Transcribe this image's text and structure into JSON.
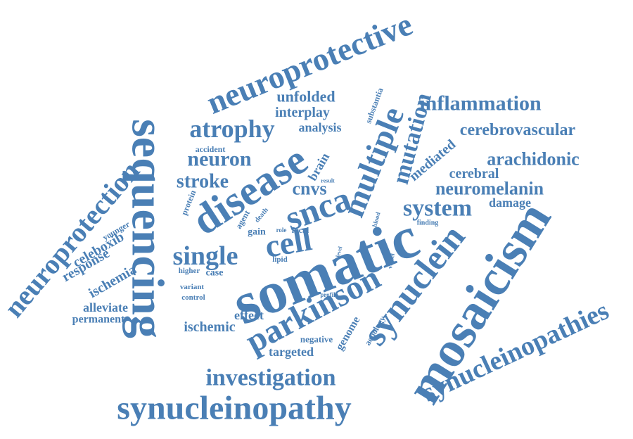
{
  "color": "#4a7fb5",
  "words": [
    {
      "key": "somatic",
      "text": "somatic"
    },
    {
      "key": "sequencing",
      "text": "sequencing"
    },
    {
      "key": "mosaicism",
      "text": "mosaicism"
    },
    {
      "key": "synucleinopathy",
      "text": "synucleinopathy"
    },
    {
      "key": "neuroprotective",
      "text": "neuroprotective"
    },
    {
      "key": "disease",
      "text": "disease"
    },
    {
      "key": "synuclein",
      "text": "synuclein"
    },
    {
      "key": "parkinson",
      "text": "parkinson"
    },
    {
      "key": "snca",
      "text": "snca"
    },
    {
      "key": "multiple",
      "text": "multiple"
    },
    {
      "key": "synucleinopathies",
      "text": "synucleinopathies"
    },
    {
      "key": "neuroprotection",
      "text": "neuroprotection"
    },
    {
      "key": "cell",
      "text": "cell"
    },
    {
      "key": "single",
      "text": "single"
    },
    {
      "key": "mutation",
      "text": "mutation"
    },
    {
      "key": "atrophy",
      "text": "atrophy"
    },
    {
      "key": "system",
      "text": "system"
    },
    {
      "key": "investigation",
      "text": "investigation"
    },
    {
      "key": "inflammation",
      "text": "inflammation"
    },
    {
      "key": "neuromelanin",
      "text": "neuromelanin"
    },
    {
      "key": "arachidonic",
      "text": "arachidonic"
    },
    {
      "key": "cerebrovascular",
      "text": "cerebrovascular"
    },
    {
      "key": "neuron",
      "text": "neuron"
    },
    {
      "key": "stroke",
      "text": "stroke"
    },
    {
      "key": "cnvs",
      "text": "cnvs"
    },
    {
      "key": "unfolded",
      "text": "unfolded"
    },
    {
      "key": "interplay",
      "text": "interplay"
    },
    {
      "key": "analysis",
      "text": "analysis"
    },
    {
      "key": "brain",
      "text": "brain"
    },
    {
      "key": "mediated",
      "text": "mediated"
    },
    {
      "key": "cerebral",
      "text": "cerebral"
    },
    {
      "key": "damage",
      "text": "damage"
    },
    {
      "key": "celeboxib",
      "text": "celeboxib"
    },
    {
      "key": "response",
      "text": "response"
    },
    {
      "key": "ischemia",
      "text": "ischemia"
    },
    {
      "key": "alleviate",
      "text": "alleviate"
    },
    {
      "key": "permanent",
      "text": "permanent"
    },
    {
      "key": "ischemic",
      "text": "ischemic"
    },
    {
      "key": "effect",
      "text": "effect"
    },
    {
      "key": "targeted",
      "text": "targeted"
    },
    {
      "key": "genome",
      "text": "genome"
    },
    {
      "key": "aetiology",
      "text": "aetiology"
    },
    {
      "key": "negative",
      "text": "negative"
    },
    {
      "key": "substantia",
      "text": "substantia"
    },
    {
      "key": "accident",
      "text": "accident"
    },
    {
      "key": "protein",
      "text": "protein"
    },
    {
      "key": "younger",
      "text": "younger"
    },
    {
      "key": "agent",
      "text": "agent"
    },
    {
      "key": "gain",
      "text": "gain"
    },
    {
      "key": "death",
      "text": "death"
    },
    {
      "key": "role",
      "text": "role"
    },
    {
      "key": "focal",
      "text": "focal"
    },
    {
      "key": "result",
      "text": "result"
    },
    {
      "key": "blood",
      "text": "blood"
    },
    {
      "key": "level",
      "text": "level"
    },
    {
      "key": "finding",
      "text": "finding"
    },
    {
      "key": "lipid",
      "text": "lipid"
    },
    {
      "key": "vessel",
      "text": "vessel"
    },
    {
      "key": "higher",
      "text": "higher"
    },
    {
      "key": "case",
      "text": "case"
    },
    {
      "key": "variant",
      "text": "variant"
    },
    {
      "key": "control",
      "text": "control"
    },
    {
      "key": "profile",
      "text": "profile"
    }
  ]
}
